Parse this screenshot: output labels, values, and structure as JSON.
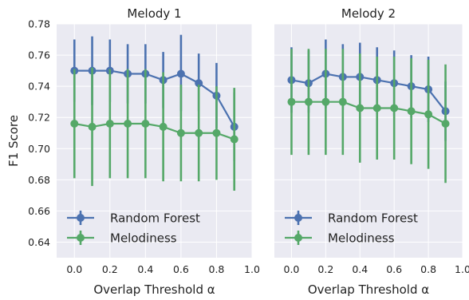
{
  "chart_data": [
    {
      "type": "line",
      "title": "Melody 1",
      "xlabel": "Overlap Threshold α",
      "ylabel": "F1 Score",
      "xlim": [
        -0.1,
        1.0
      ],
      "ylim": [
        0.63,
        0.78
      ],
      "x": [
        0.0,
        0.1,
        0.2,
        0.3,
        0.4,
        0.5,
        0.6,
        0.7,
        0.8,
        0.9
      ],
      "x_ticks": [
        "0.0",
        "0.2",
        "0.4",
        "0.6",
        "0.8",
        "1.0"
      ],
      "y_ticks": [
        "0.64",
        "0.66",
        "0.68",
        "0.70",
        "0.72",
        "0.74",
        "0.76",
        "0.78"
      ],
      "grid": true,
      "legend_position": "lower-left",
      "series": [
        {
          "name": "Random Forest",
          "color": "#4C72B0",
          "values": [
            0.75,
            0.75,
            0.75,
            0.748,
            0.748,
            0.744,
            0.748,
            0.742,
            0.734,
            0.714
          ],
          "err_low": [
            0.73,
            0.728,
            0.73,
            0.729,
            0.729,
            0.726,
            0.724,
            0.724,
            0.713,
            0.692
          ],
          "err_high": [
            0.77,
            0.772,
            0.77,
            0.767,
            0.767,
            0.762,
            0.773,
            0.761,
            0.755,
            0.736
          ]
        },
        {
          "name": "Melodiness",
          "color": "#55A868",
          "values": [
            0.716,
            0.714,
            0.716,
            0.716,
            0.716,
            0.714,
            0.71,
            0.71,
            0.71,
            0.706
          ],
          "err_low": [
            0.681,
            0.676,
            0.681,
            0.681,
            0.681,
            0.679,
            0.679,
            0.679,
            0.68,
            0.673
          ],
          "err_high": [
            0.751,
            0.752,
            0.751,
            0.751,
            0.751,
            0.749,
            0.741,
            0.741,
            0.74,
            0.739
          ]
        }
      ]
    },
    {
      "type": "line",
      "title": "Melody 2",
      "xlabel": "Overlap Threshold α",
      "ylabel": "",
      "xlim": [
        -0.1,
        1.0
      ],
      "ylim": [
        0.63,
        0.78
      ],
      "x": [
        0.0,
        0.1,
        0.2,
        0.3,
        0.4,
        0.5,
        0.6,
        0.7,
        0.8,
        0.9
      ],
      "x_ticks": [
        "0.0",
        "0.2",
        "0.4",
        "0.6",
        "0.8",
        "1.0"
      ],
      "y_ticks": [],
      "grid": true,
      "legend_position": "lower-left",
      "series": [
        {
          "name": "Random Forest",
          "color": "#4C72B0",
          "values": [
            0.744,
            0.742,
            0.748,
            0.746,
            0.746,
            0.744,
            0.742,
            0.74,
            0.738,
            0.724
          ],
          "err_low": [
            0.723,
            0.723,
            0.726,
            0.725,
            0.724,
            0.722,
            0.721,
            0.72,
            0.717,
            0.705
          ],
          "err_high": [
            0.765,
            0.763,
            0.77,
            0.767,
            0.768,
            0.765,
            0.763,
            0.76,
            0.759,
            0.743
          ]
        },
        {
          "name": "Melodiness",
          "color": "#55A868",
          "values": [
            0.73,
            0.73,
            0.73,
            0.73,
            0.726,
            0.726,
            0.726,
            0.724,
            0.722,
            0.716
          ],
          "err_low": [
            0.696,
            0.696,
            0.696,
            0.696,
            0.691,
            0.693,
            0.693,
            0.69,
            0.687,
            0.678
          ],
          "err_high": [
            0.764,
            0.764,
            0.764,
            0.764,
            0.761,
            0.759,
            0.759,
            0.758,
            0.757,
            0.754
          ]
        }
      ]
    }
  ]
}
